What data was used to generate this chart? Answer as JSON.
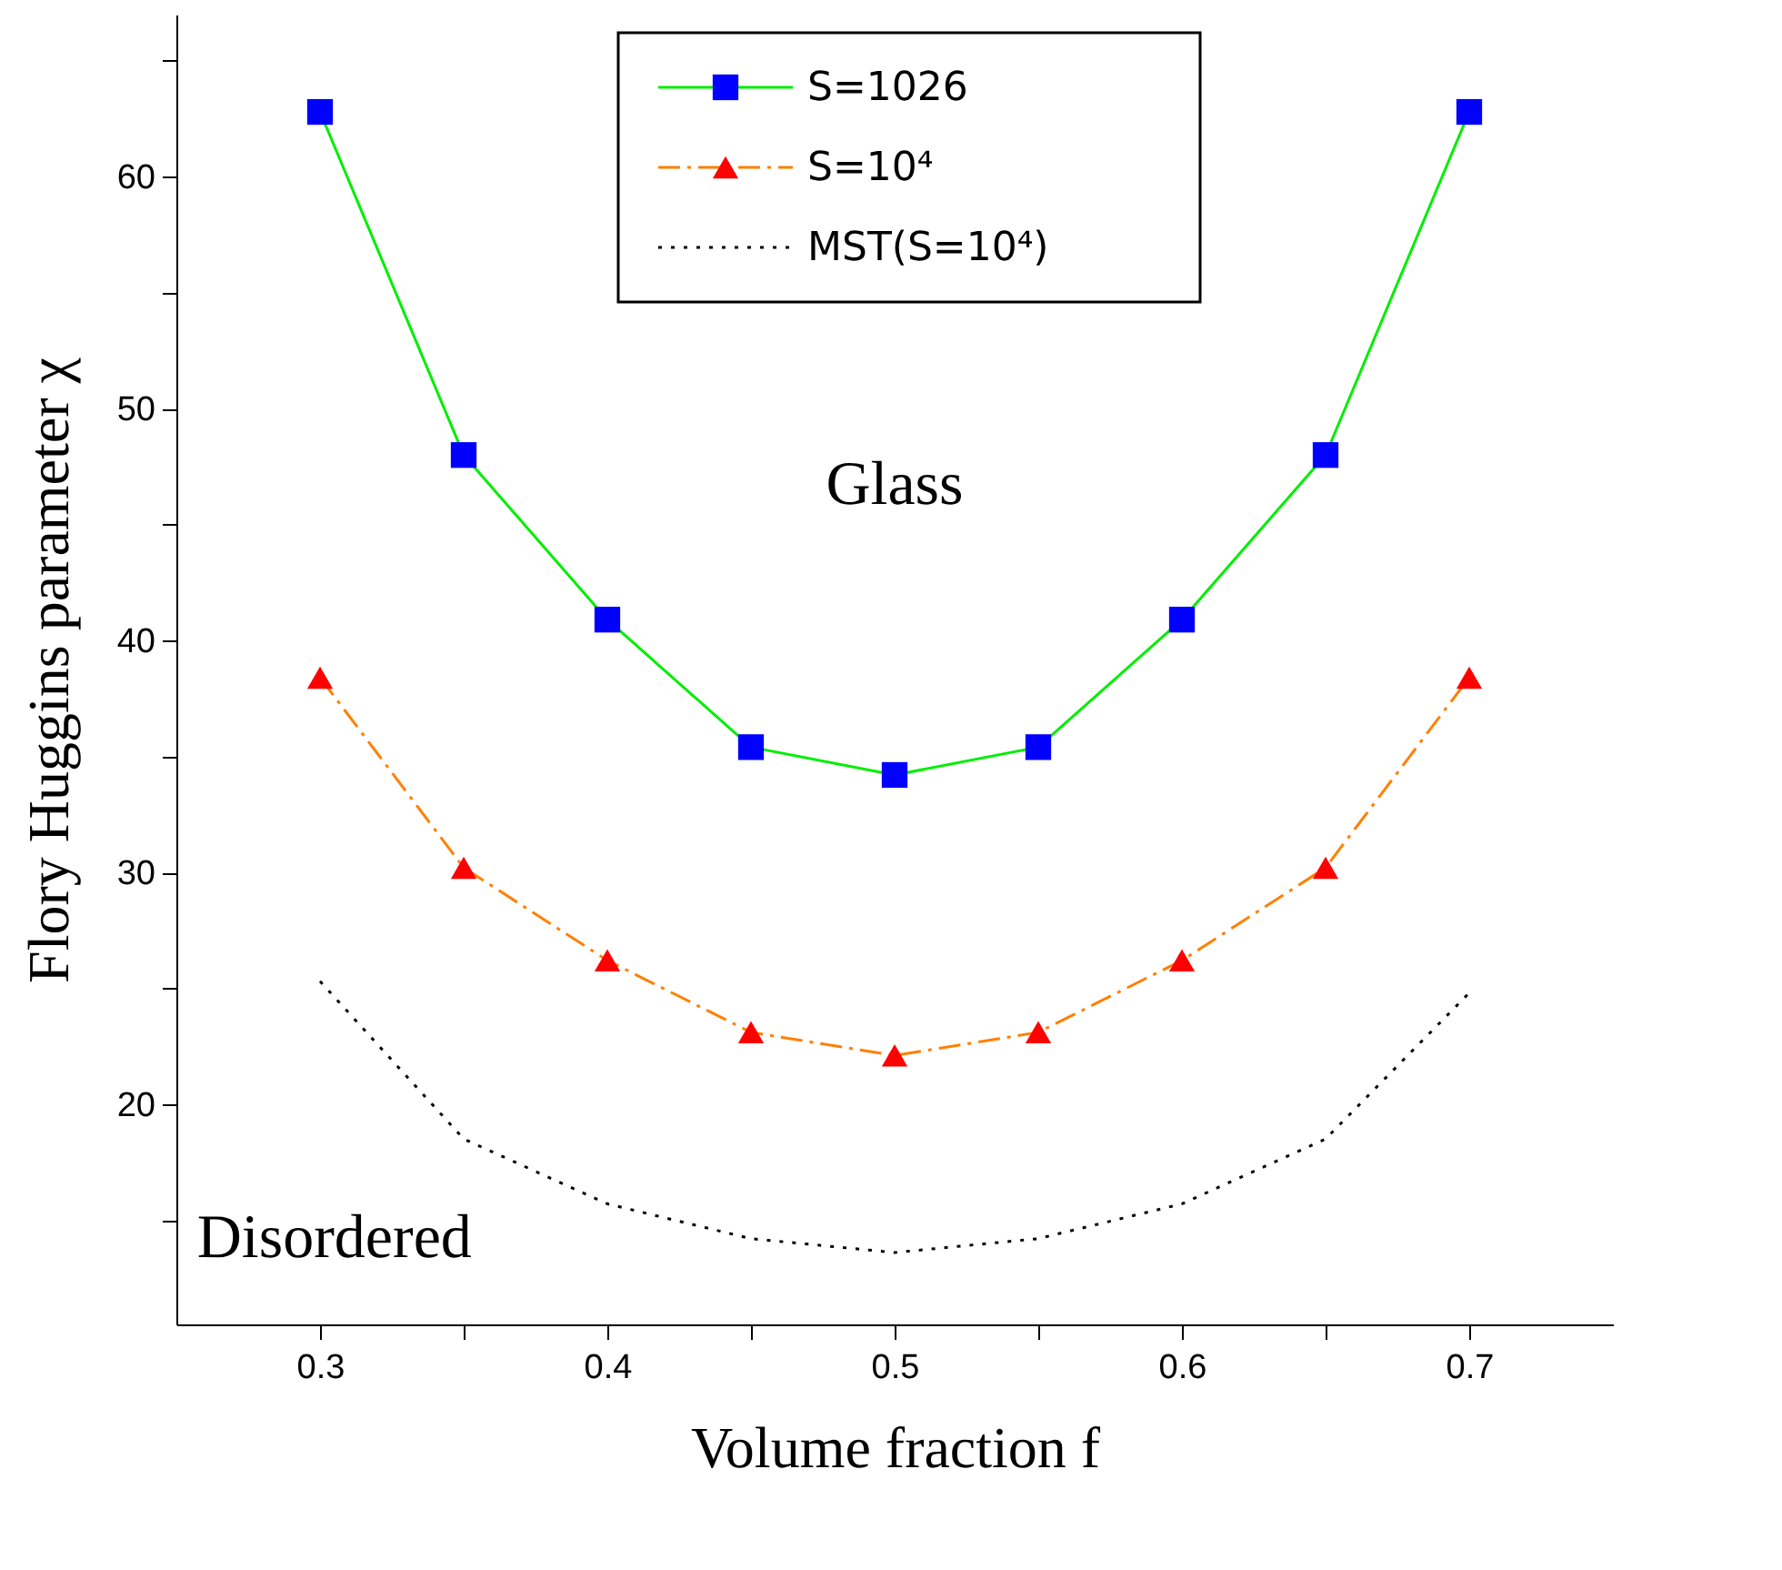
{
  "chart_data": {
    "type": "line",
    "xlabel": "Volume fraction f",
    "ylabel": "Flory Huggins parameter χ",
    "x": [
      0.3,
      0.35,
      0.4,
      0.45,
      0.5,
      0.55,
      0.6,
      0.65,
      0.7
    ],
    "series": [
      {
        "name": "S=1026",
        "color": "#00ee00",
        "colors": [
          "#0000ff",
          "#0000ff",
          "#0000ff",
          "#0000ff",
          "#0000ff",
          "#0000ff",
          "#0000ff",
          "#0000ff",
          "#0000ff"
        ],
        "marker": "square",
        "line_style": "solid",
        "values": [
          62.8,
          48.0,
          40.9,
          35.4,
          34.2,
          35.4,
          40.9,
          48.0,
          62.8
        ]
      },
      {
        "name": "S=10⁴",
        "color": "#ff8000",
        "colors": [
          "#ff0000",
          "#ff0000",
          "#ff0000",
          "#ff0000",
          "#ff0000",
          "#ff0000",
          "#ff0000",
          "#ff0000",
          "#ff0000"
        ],
        "marker": "triangle",
        "line_style": "dashed",
        "values": [
          38.4,
          30.2,
          26.2,
          23.1,
          22.1,
          23.1,
          26.2,
          30.2,
          38.4
        ]
      },
      {
        "name": "MST(S=10⁴)",
        "color": "#000000",
        "marker": "none",
        "line_style": "dotted",
        "values": [
          25.3,
          18.5,
          15.7,
          14.2,
          13.6,
          14.2,
          15.7,
          18.5,
          24.8
        ]
      }
    ],
    "annotations": [
      "Glass",
      "Disordered"
    ],
    "xlim": [
      0.25,
      0.75
    ],
    "ylim": [
      10.5,
      67
    ],
    "xticks": [
      0.3,
      {
        "value": 0.35,
        "label": null
      },
      0.4,
      {
        "value": 0.45,
        "label": null
      },
      0.5,
      {
        "value": 0.55,
        "label": null
      },
      0.6,
      {
        "value": 0.65,
        "label": null
      },
      0.7
    ],
    "yticks": [
      {
        "value": 15,
        "label": null
      },
      20,
      {
        "value": 25,
        "label": null
      },
      30,
      {
        "value": 35,
        "label": null
      },
      40,
      {
        "value": 45,
        "label": null
      },
      50,
      {
        "value": 55,
        "label": null
      },
      60,
      {
        "value": 65,
        "label": null
      }
    ],
    "legend": "top",
    "grid": false
  }
}
